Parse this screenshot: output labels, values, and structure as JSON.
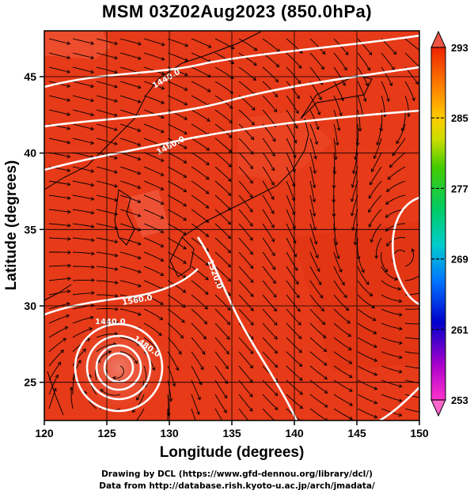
{
  "title": "MSM 03Z02Aug2023 (850.0hPa)",
  "axes": {
    "xlabel": "Longitude (degrees)",
    "ylabel": "Latitude  (degrees)",
    "xlim": [
      120,
      150
    ],
    "ylim": [
      22.5,
      48
    ],
    "xticks": [
      120,
      125,
      130,
      135,
      140,
      145,
      150
    ],
    "yticks": [
      25,
      30,
      35,
      40,
      45
    ]
  },
  "colorbar": {
    "min": 253,
    "max": 293,
    "labels": [
      253,
      261,
      269,
      277,
      285,
      293
    ],
    "extend_arrows": "both"
  },
  "contours": {
    "labels": [
      "1440.0",
      "1480.0",
      "1520.0",
      "1560.0",
      "1440.0",
      "1480.0"
    ]
  },
  "credits": {
    "line1": "Drawing by DCL (https://www.gfd-dennou.org/library/dcl/)",
    "line2": "Data from http://database.rish.kyoto-u.ac.jp/arch/jmadata/"
  },
  "colors": {
    "field_base": "#e63a18",
    "field_light": "#f05a40",
    "contour": "#ffffff",
    "coast": "#000000",
    "vector": "#000000"
  }
}
